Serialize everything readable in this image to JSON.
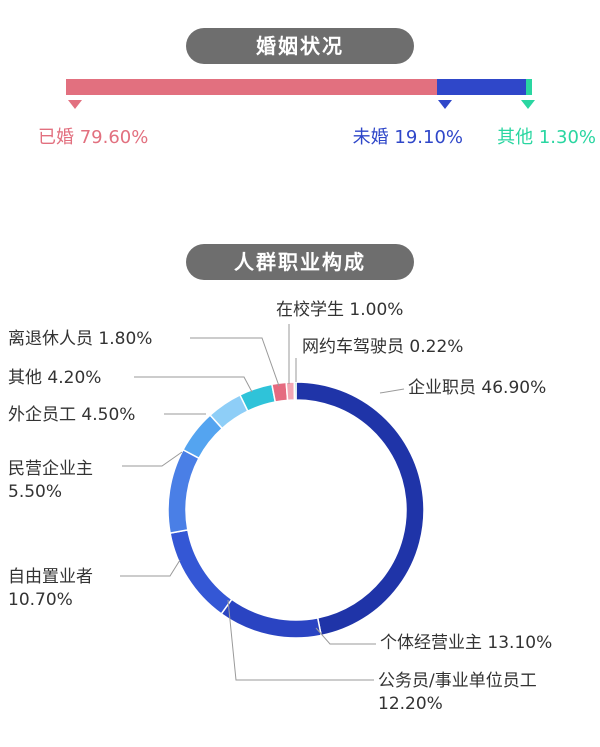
{
  "sections": {
    "marriage_title": "婚姻状况",
    "occupation_title": "人群职业构成"
  },
  "colors": {
    "married": "#e2707f",
    "unmarried": "#2f47c9",
    "other": "#2ad6a1"
  },
  "chart_data": [
    {
      "type": "bar",
      "title": "婚姻状况",
      "orientation": "horizontal-stacked",
      "categories": [
        "已婚",
        "未婚",
        "其他"
      ],
      "values": [
        79.6,
        19.1,
        1.3
      ],
      "labels": [
        "已婚 79.60%",
        "未婚 19.10%",
        "其他 1.30%"
      ]
    },
    {
      "type": "pie",
      "variant": "donut",
      "title": "人群职业构成",
      "slices": [
        {
          "label": "企业职员 46.90%",
          "value": 46.9,
          "color": "#1f34a8"
        },
        {
          "label": "个体经营业主 13.10%",
          "value": 13.1,
          "color": "#2a44c2"
        },
        {
          "label": "公务员/事业单位员工",
          "label2": "12.20%",
          "value": 12.2,
          "color": "#3457d5"
        },
        {
          "label": "自由置业者",
          "label2": "10.70%",
          "value": 10.7,
          "color": "#4a7fe6"
        },
        {
          "label": "民营企业主",
          "label2": "5.50%",
          "value": 5.5,
          "color": "#54a4f0"
        },
        {
          "label": "外企员工 4.50%",
          "value": 4.5,
          "color": "#8ecef7"
        },
        {
          "label": "其他 4.20%",
          "value": 4.2,
          "color": "#2fc3d9"
        },
        {
          "label": "离退休人员 1.80%",
          "value": 1.8,
          "color": "#e56b80"
        },
        {
          "label": "在校学生 1.00%",
          "value": 1.0,
          "color": "#f2a7b4"
        },
        {
          "label": "网约车驾驶员 0.22%",
          "value": 0.22,
          "color": "#2ad6a1"
        }
      ]
    }
  ]
}
